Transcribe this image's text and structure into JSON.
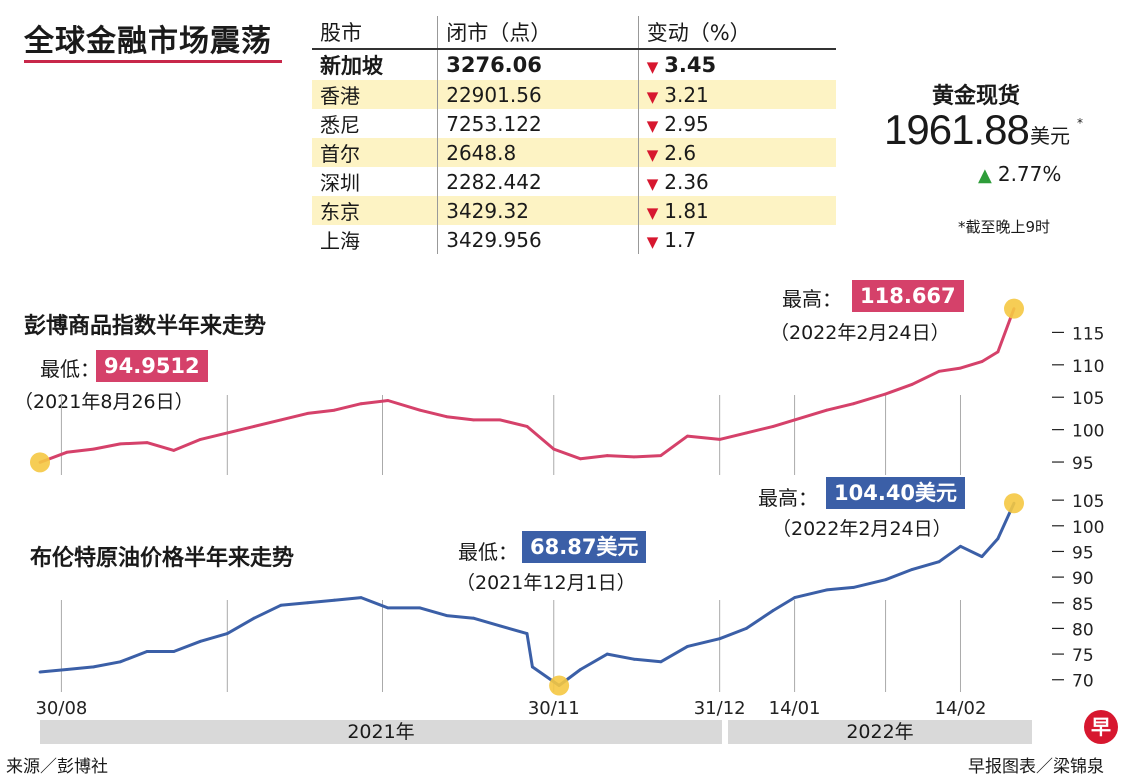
{
  "headline": "全球金融市场震荡",
  "stocks": {
    "headers": [
      "股市",
      "闭市（点）",
      "变动（%）"
    ],
    "rows": [
      {
        "market": "新加坡",
        "close": "3276.06",
        "change": "3.45"
      },
      {
        "market": "香港",
        "close": "22901.56",
        "change": "3.21"
      },
      {
        "market": "悉尼",
        "close": "7253.122",
        "change": "2.95"
      },
      {
        "market": "首尔",
        "close": "2648.8",
        "change": "2.6"
      },
      {
        "market": "深圳",
        "close": "2282.442",
        "change": "2.36"
      },
      {
        "market": "东京",
        "close": "3429.32",
        "change": "1.81"
      },
      {
        "market": "上海",
        "close": "3429.956",
        "change": "1.7"
      }
    ]
  },
  "gold": {
    "title": "黄金现货",
    "price": "1961.88",
    "unit": "美元",
    "star": "*",
    "change": "2.77%",
    "note": "*截至晚上9时"
  },
  "colors": {
    "commodity_line": "#d5416a",
    "oil_line": "#3b5fa7",
    "marker": "#f5c842",
    "down_arrow": "#d7172f",
    "up_arrow": "#2e9d3a"
  },
  "chart_data": [
    {
      "type": "line",
      "title": "彭博商品指数半年来走势",
      "x": [
        "2021-08-26",
        "2021-08-31",
        "2021-09-05",
        "2021-09-10",
        "2021-09-15",
        "2021-09-20",
        "2021-09-25",
        "2021-09-30",
        "2021-10-05",
        "2021-10-10",
        "2021-10-15",
        "2021-10-20",
        "2021-10-25",
        "2021-10-30",
        "2021-11-05",
        "2021-11-10",
        "2021-11-15",
        "2021-11-20",
        "2021-11-25",
        "2021-11-30",
        "2021-12-05",
        "2021-12-10",
        "2021-12-15",
        "2021-12-20",
        "2021-12-25",
        "2021-12-31",
        "2022-01-05",
        "2022-01-10",
        "2022-01-14",
        "2022-01-20",
        "2022-01-25",
        "2022-01-31",
        "2022-02-05",
        "2022-02-10",
        "2022-02-14",
        "2022-02-18",
        "2022-02-21",
        "2022-02-24"
      ],
      "values": [
        94.9512,
        96.5,
        97.0,
        97.8,
        98.0,
        96.8,
        98.5,
        99.5,
        100.5,
        101.5,
        102.5,
        103.0,
        104.0,
        104.5,
        103.0,
        102.0,
        101.5,
        101.5,
        100.5,
        97.0,
        95.5,
        96.0,
        95.8,
        96.0,
        99.0,
        98.5,
        99.5,
        100.5,
        101.5,
        103.0,
        104.0,
        105.5,
        107.0,
        109.0,
        109.5,
        110.5,
        112.0,
        118.667
      ],
      "yticks": [
        95,
        100,
        105,
        110,
        115
      ],
      "ylim": [
        93,
        120
      ],
      "annotations": {
        "low_label": "最低：",
        "low_value": "94.9512",
        "low_date": "（2021年8月26日）",
        "high_label": "最高：",
        "high_value": "118.667",
        "high_date": "（2022年2月24日）"
      }
    },
    {
      "type": "line",
      "title": "布伦特原油价格半年来走势",
      "x": [
        "2021-08-26",
        "2021-08-31",
        "2021-09-05",
        "2021-09-10",
        "2021-09-15",
        "2021-09-20",
        "2021-09-25",
        "2021-09-30",
        "2021-10-05",
        "2021-10-10",
        "2021-10-15",
        "2021-10-20",
        "2021-10-25",
        "2021-10-30",
        "2021-11-05",
        "2021-11-10",
        "2021-11-15",
        "2021-11-20",
        "2021-11-25",
        "2021-11-26",
        "2021-12-01",
        "2021-12-05",
        "2021-12-10",
        "2021-12-15",
        "2021-12-20",
        "2021-12-25",
        "2021-12-31",
        "2022-01-05",
        "2022-01-10",
        "2022-01-14",
        "2022-01-20",
        "2022-01-25",
        "2022-01-31",
        "2022-02-05",
        "2022-02-10",
        "2022-02-14",
        "2022-02-18",
        "2022-02-21",
        "2022-02-24"
      ],
      "values": [
        71.5,
        72.0,
        72.5,
        73.5,
        75.5,
        75.5,
        77.5,
        79.0,
        82.0,
        84.5,
        85.0,
        85.5,
        86.0,
        84.0,
        84.0,
        82.5,
        82.0,
        80.5,
        79.0,
        72.5,
        68.87,
        72.0,
        75.0,
        74.0,
        73.5,
        76.5,
        78.0,
        80.0,
        83.5,
        86.0,
        87.5,
        88.0,
        89.5,
        91.5,
        93.0,
        96.0,
        94.0,
        97.5,
        104.4
      ],
      "yticks": [
        70,
        75,
        80,
        85,
        90,
        95,
        100,
        105
      ],
      "ylim": [
        68,
        106
      ],
      "annotations": {
        "low_label": "最低：",
        "low_value": "68.87美元",
        "low_date": "（2021年12月1日）",
        "high_label": "最高：",
        "high_value": "104.40美元",
        "high_date": "（2022年2月24日）"
      }
    }
  ],
  "x_axis": {
    "tick_labels": [
      "30/08",
      "30/11",
      "31/12",
      "14/01",
      "14/02"
    ],
    "years": [
      "2021年",
      "2022年"
    ]
  },
  "footer": {
    "source": "来源／彭博社",
    "credit": "早报图表／梁锦泉",
    "logo": "早"
  }
}
